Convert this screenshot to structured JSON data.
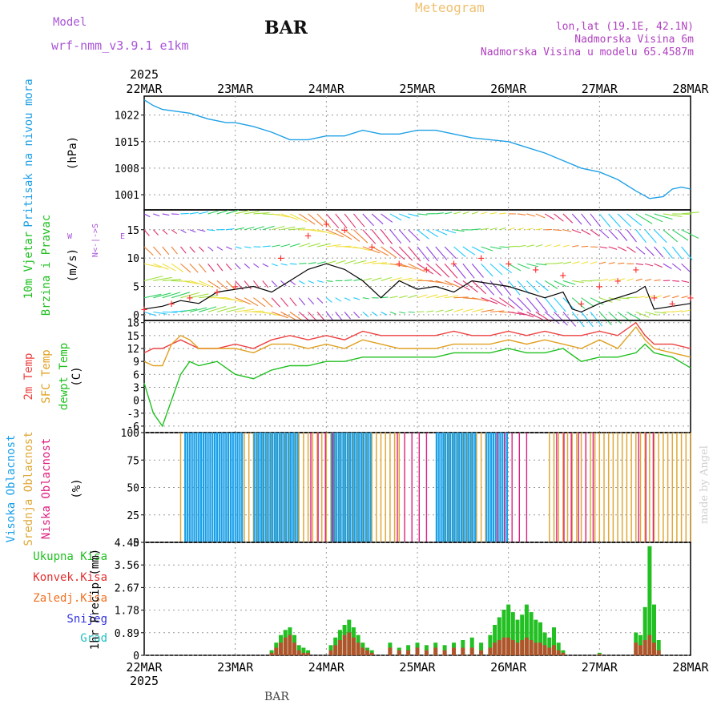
{
  "header": {
    "model_label": "Model",
    "model_name": "wrf-nmm_v3.9.1 e1km",
    "station": "BAR",
    "chart_title": "Meteogram",
    "lonlat": "lon,lat (19.1E, 42.1N)",
    "altitude": "Nadmorska Visina 6m",
    "model_altitude": "Nadmorska Visina u modelu 65.4587m"
  },
  "footer": {
    "station": "BAR",
    "credit": "made by Angel"
  },
  "colors": {
    "pressure": "#1ea0e6",
    "wind_speed": "#000000",
    "gust": "#ff3030",
    "temp_2m": "#ee4040",
    "temp_sfc": "#e0a020",
    "dewpoint": "#20c020",
    "cloud_high": "#1aa0e8",
    "cloud_mid": "#e0a838",
    "cloud_low": "#e02080",
    "precip_total": "#22c022",
    "precip_conv": "#e03030",
    "precip_frozen": "#f07020",
    "snow": "#3030e0",
    "hail": "#20c0c0"
  },
  "chart_data": [
    {
      "type": "line",
      "id": "pressure",
      "ylabel": "Pritisak na nivou mora",
      "unit": "(hPa)",
      "x_ticks": [
        "22MAR",
        "23MAR",
        "24MAR",
        "25MAR",
        "26MAR",
        "27MAR",
        "28MAR"
      ],
      "x_year": "2025",
      "y_ticks": [
        1001,
        1008,
        1015,
        1022
      ],
      "ylim": [
        997,
        1027
      ],
      "x": [
        0,
        0.1,
        0.2,
        0.35,
        0.5,
        0.7,
        0.9,
        1.0,
        1.2,
        1.4,
        1.6,
        1.8,
        1.9,
        2.0,
        2.2,
        2.4,
        2.6,
        2.8,
        3.0,
        3.2,
        3.4,
        3.6,
        3.8,
        4.0,
        4.2,
        4.4,
        4.6,
        4.8,
        5.0,
        5.2,
        5.4,
        5.55,
        5.7,
        5.8,
        5.9,
        6.0
      ],
      "y": [
        1026,
        1024.5,
        1023.5,
        1023,
        1022.5,
        1021,
        1020,
        1020,
        1019,
        1017.5,
        1015.5,
        1015.5,
        1016,
        1016.5,
        1016.5,
        1018,
        1017,
        1017,
        1018,
        1018,
        1017,
        1016,
        1015.5,
        1015,
        1013.5,
        1012,
        1010,
        1008,
        1007,
        1005,
        1002,
        1000,
        1000.5,
        1002.5,
        1003,
        1002.5
      ]
    },
    {
      "type": "line",
      "id": "wind",
      "ylabel": "10m Vjetar Brzina i Pravac",
      "unit": "(m/s)",
      "compass": "N <- | -> S  W E",
      "y_ticks": [
        0,
        5,
        10,
        15
      ],
      "ylim": [
        -1,
        18.5
      ],
      "series": [
        {
          "name": "speed",
          "x": [
            0,
            0.2,
            0.4,
            0.6,
            0.8,
            1.0,
            1.2,
            1.4,
            1.6,
            1.8,
            2.0,
            2.2,
            2.4,
            2.6,
            2.8,
            3.0,
            3.2,
            3.4,
            3.6,
            3.8,
            4.0,
            4.2,
            4.4,
            4.6,
            4.7,
            4.8,
            5.0,
            5.2,
            5.4,
            5.5,
            5.6,
            5.8,
            6.0
          ],
          "values": [
            1,
            1.5,
            2.5,
            2,
            4,
            4.5,
            5,
            4,
            6,
            8,
            9,
            8,
            6,
            3,
            6,
            4.5,
            5,
            4,
            6,
            5.5,
            5,
            4,
            3,
            4,
            1,
            0.5,
            2,
            3,
            4,
            5,
            1,
            1.5,
            2
          ]
        },
        {
          "name": "gust",
          "x": [
            0,
            0.3,
            0.5,
            0.8,
            1.0,
            1.5,
            1.8,
            2.0,
            2.2,
            2.5,
            2.8,
            3.1,
            3.4,
            3.7,
            4.0,
            4.3,
            4.6,
            4.8,
            5.0,
            5.2,
            5.4,
            5.6,
            5.8,
            6.0
          ],
          "values": [
            1,
            2,
            3,
            4,
            5,
            10,
            14,
            16,
            15,
            12,
            9,
            8,
            9,
            10,
            9,
            8,
            7,
            2,
            5,
            6,
            8,
            3,
            2,
            3
          ]
        }
      ]
    },
    {
      "type": "line",
      "id": "temperature",
      "ylabel": "2m Temp",
      "ylabel2": "SFC Temp",
      "ylabel3": "dewpt Temp",
      "unit": "(C)",
      "y_ticks": [
        -6,
        -3,
        0,
        3,
        6,
        9,
        12,
        15,
        18
      ],
      "ylim": [
        -7.5,
        18.5
      ],
      "x": [
        0,
        0.1,
        0.2,
        0.3,
        0.4,
        0.5,
        0.6,
        0.8,
        1.0,
        1.2,
        1.4,
        1.6,
        1.8,
        2.0,
        2.2,
        2.4,
        2.6,
        2.8,
        3.0,
        3.2,
        3.4,
        3.6,
        3.8,
        4.0,
        4.2,
        4.4,
        4.6,
        4.8,
        5.0,
        5.2,
        5.4,
        5.5,
        5.6,
        5.8,
        6.0
      ],
      "series": [
        {
          "name": "2m Temp",
          "values": [
            11,
            12,
            12,
            13,
            14,
            13,
            12,
            12,
            13,
            12,
            14,
            15,
            14,
            15,
            14,
            16,
            15,
            15,
            15,
            15,
            16,
            15,
            15,
            16,
            15,
            16,
            15,
            15,
            16,
            15,
            18,
            15,
            13,
            13,
            12
          ]
        },
        {
          "name": "SFC Temp",
          "values": [
            9,
            8,
            8,
            13,
            15,
            14,
            12,
            12,
            12,
            11,
            13,
            13,
            12,
            13,
            12,
            14,
            13,
            12,
            12,
            12,
            13,
            13,
            13,
            14,
            13,
            14,
            13,
            12,
            14,
            12,
            17,
            14,
            12,
            11,
            10
          ]
        },
        {
          "name": "dewpt Temp",
          "values": [
            4,
            -3,
            -6,
            0,
            6,
            9,
            8,
            9,
            6,
            5,
            7,
            8,
            8,
            9,
            9,
            10,
            10,
            10,
            10,
            10,
            11,
            11,
            11,
            12,
            11,
            11,
            12,
            9,
            10,
            10,
            11,
            13,
            11,
            10,
            7.5
          ]
        }
      ]
    },
    {
      "type": "bar",
      "id": "clouds",
      "ylabel": "Visoka Oblacnost",
      "ylabel2": "Srednja Oblacnost",
      "ylabel3": "Niska Oblacnost",
      "unit": "(%)",
      "y_ticks": [
        0,
        25,
        50,
        75,
        100
      ],
      "ylim": [
        0,
        100
      ],
      "high_segments": [
        [
          0.44,
          1.08
        ],
        [
          1.2,
          1.7
        ],
        [
          2.05,
          2.5
        ],
        [
          3.2,
          3.65
        ],
        [
          3.75,
          4.0
        ]
      ],
      "mid_segments": [
        [
          0.4,
          2.8
        ],
        [
          3.3,
          3.75
        ],
        [
          4.45,
          6.0
        ]
      ],
      "low_segments": [
        [
          1.8,
          2.1
        ],
        [
          2.75,
          3.1
        ],
        [
          3.85,
          4.2
        ],
        [
          4.5,
          5.0
        ],
        [
          5.4,
          5.6
        ]
      ]
    },
    {
      "type": "bar",
      "id": "precip",
      "ylabel": "1hr Precip",
      "unit": "(mm)",
      "legend": [
        "Ukupna Kisa",
        "Konvek.Kisa",
        "Zaledj.Kisa",
        "Snijeg",
        "Grad"
      ],
      "y_ticks": [
        0,
        0.89,
        1.78,
        2.67,
        3.56,
        4.45
      ],
      "y_tick_labels": [
        "0",
        "0.89",
        "1.78",
        "2.67",
        "3.56",
        "4.45"
      ],
      "ylim": [
        0,
        4.45
      ],
      "x": [
        1.4,
        1.45,
        1.5,
        1.55,
        1.6,
        1.65,
        1.7,
        1.75,
        1.8,
        2.05,
        2.1,
        2.15,
        2.2,
        2.25,
        2.3,
        2.35,
        2.4,
        2.45,
        2.5,
        2.7,
        2.8,
        2.9,
        3.0,
        3.1,
        3.2,
        3.3,
        3.4,
        3.5,
        3.6,
        3.7,
        3.8,
        3.85,
        3.9,
        3.95,
        4.0,
        4.05,
        4.1,
        4.15,
        4.2,
        4.25,
        4.3,
        4.35,
        4.4,
        4.45,
        4.5,
        4.55,
        4.6,
        5.0,
        5.4,
        5.45,
        5.5,
        5.55,
        5.6,
        5.65
      ],
      "values": [
        0.2,
        0.5,
        0.8,
        1.0,
        1.1,
        0.8,
        0.4,
        0.3,
        0.2,
        0.4,
        0.7,
        1.0,
        1.2,
        1.4,
        1.1,
        0.8,
        0.5,
        0.3,
        0.2,
        0.5,
        0.3,
        0.4,
        0.5,
        0.4,
        0.5,
        0.4,
        0.5,
        0.6,
        0.7,
        0.5,
        0.8,
        1.2,
        1.5,
        1.8,
        2.0,
        1.7,
        1.4,
        1.6,
        2.0,
        1.7,
        1.4,
        1.3,
        0.9,
        0.7,
        1.1,
        0.5,
        0.2,
        0.1,
        0.9,
        0.8,
        1.9,
        4.3,
        2.0,
        0.6
      ],
      "convective": [
        0.1,
        0.3,
        0.5,
        0.7,
        0.8,
        0.5,
        0.2,
        0.1,
        0.1,
        0.2,
        0.4,
        0.6,
        0.8,
        0.9,
        0.7,
        0.5,
        0.3,
        0.2,
        0.1,
        0.3,
        0.2,
        0.2,
        0.3,
        0.2,
        0.3,
        0.2,
        0.3,
        0.3,
        0.3,
        0.2,
        0.3,
        0.5,
        0.6,
        0.7,
        0.7,
        0.6,
        0.5,
        0.6,
        0.7,
        0.6,
        0.5,
        0.5,
        0.4,
        0.3,
        0.4,
        0.2,
        0.1,
        0.05,
        0.5,
        0.4,
        0.6,
        0.8,
        0.5,
        0.2
      ]
    }
  ]
}
